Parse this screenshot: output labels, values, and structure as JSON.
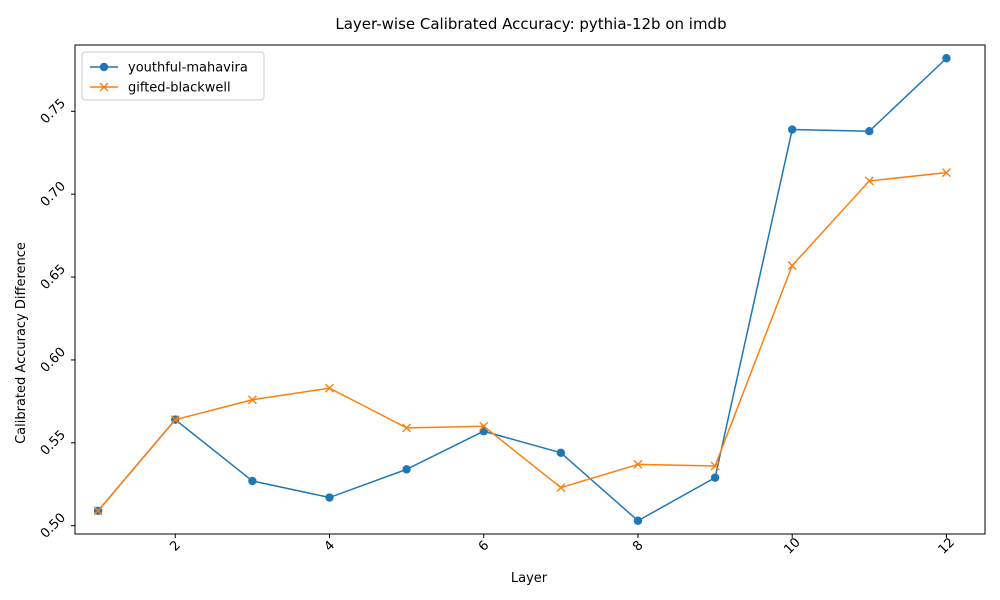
{
  "chart_data": {
    "type": "line",
    "title": "Layer-wise Calibrated Accuracy: pythia-12b on imdb",
    "xlabel": "Layer",
    "ylabel": "Calibrated Accuracy Difference",
    "xlim": [
      0.7,
      12.5
    ],
    "ylim": [
      0.495,
      0.79
    ],
    "xticks": [
      2,
      4,
      6,
      8,
      10,
      12
    ],
    "yticks": [
      0.5,
      0.55,
      0.6,
      0.65,
      0.7,
      0.75
    ],
    "ytick_labels": [
      "0.50",
      "0.55",
      "0.60",
      "0.65",
      "0.70",
      "0.75"
    ],
    "tick_rotation": 45,
    "grid": false,
    "legend_position": "top-left",
    "x": [
      1,
      2,
      3,
      4,
      5,
      6,
      7,
      8,
      9,
      10,
      11,
      12
    ],
    "series": [
      {
        "name": "youthful-mahavira",
        "color": "#1f77b4",
        "marker": "circle",
        "values": [
          0.509,
          0.564,
          0.527,
          0.517,
          0.534,
          0.557,
          0.544,
          0.503,
          0.529,
          0.739,
          0.738,
          0.782
        ]
      },
      {
        "name": "gifted-blackwell",
        "color": "#ff7f0e",
        "marker": "x",
        "values": [
          0.509,
          0.564,
          0.576,
          0.583,
          0.559,
          0.56,
          0.523,
          0.537,
          0.536,
          0.657,
          0.708,
          0.713
        ]
      }
    ]
  }
}
